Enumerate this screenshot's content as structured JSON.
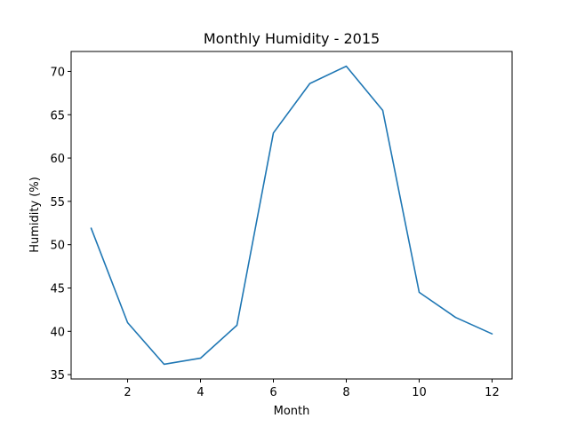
{
  "chart_data": {
    "type": "line",
    "title": "Monthly Humidity - 2015",
    "xlabel": "Month",
    "ylabel": "Humidity (%)",
    "x": [
      1,
      2,
      3,
      4,
      5,
      6,
      7,
      8,
      9,
      10,
      11,
      12
    ],
    "series": [
      {
        "values": [
          51.9,
          41.0,
          36.2,
          36.9,
          40.7,
          62.9,
          68.6,
          70.6,
          65.5,
          44.5,
          41.6,
          39.7
        ],
        "color": "#1f77b4"
      }
    ],
    "xlim": [
      0.45,
      12.55
    ],
    "ylim": [
      34.5,
      72.3
    ],
    "xticks": [
      2,
      4,
      6,
      8,
      10,
      12
    ],
    "yticks": [
      35,
      40,
      45,
      50,
      55,
      60,
      65,
      70
    ],
    "grid": false,
    "legend": "none"
  }
}
